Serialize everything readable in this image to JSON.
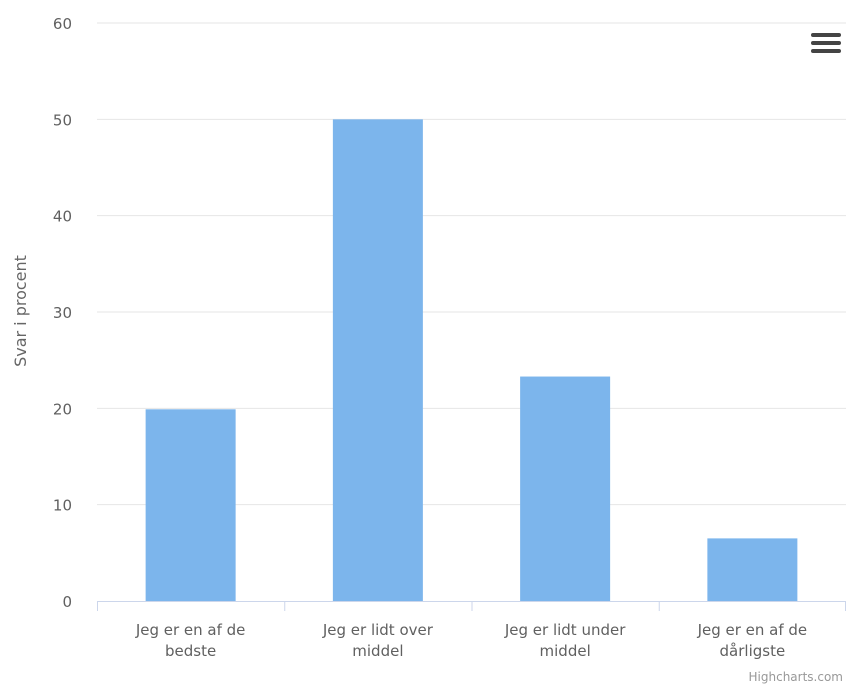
{
  "chart_data": {
    "type": "bar",
    "categories": [
      [
        "Jeg er en af de",
        "bedste"
      ],
      [
        "Jeg er lidt over",
        "middel"
      ],
      [
        "Jeg er lidt under",
        "middel"
      ],
      [
        "Jeg er en af de",
        "dårligste"
      ]
    ],
    "values": [
      19.9,
      50,
      23.3,
      6.5
    ],
    "ylabel": "Svar i procent",
    "ylim": [
      0,
      60
    ],
    "yticks": [
      0,
      10,
      20,
      30,
      40,
      50,
      60
    ],
    "grid": true,
    "bar_color": "#7cb5ec",
    "credits": "Highcharts.com",
    "menu_icon": "hamburger-menu-icon"
  }
}
